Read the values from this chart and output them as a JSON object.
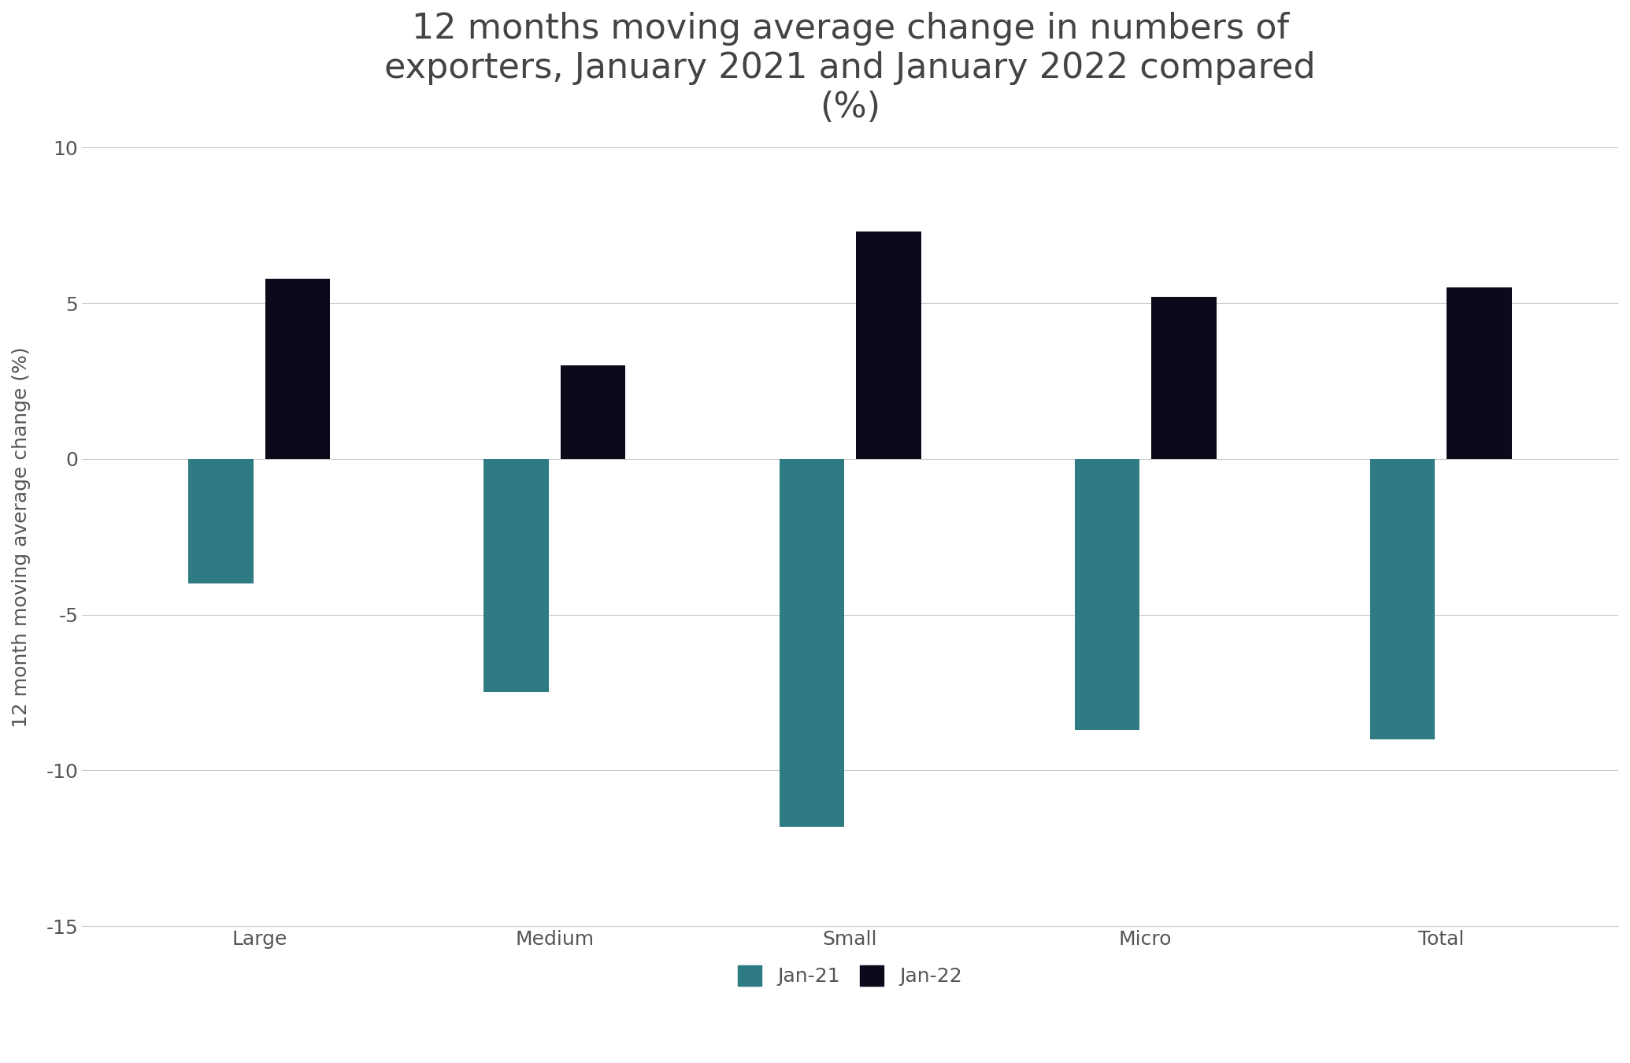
{
  "title": "12 months moving average change in numbers of\nexporters, January 2021 and January 2022 compared\n(%)",
  "ylabel": "12 month moving average change (%)",
  "categories": [
    "Large",
    "Medium",
    "Small",
    "Micro",
    "Total"
  ],
  "jan21_values": [
    -4.0,
    -7.5,
    -11.8,
    -8.7,
    -9.0
  ],
  "jan22_values": [
    5.8,
    3.0,
    7.3,
    5.2,
    5.5
  ],
  "color_jan21": "#2e7b84",
  "color_jan22": "#0a0a1a",
  "ylim": [
    -15,
    10
  ],
  "yticks": [
    -15,
    -10,
    -5,
    0,
    5,
    10
  ],
  "bar_width": 0.22,
  "bar_gap": 0.04,
  "legend_labels": [
    "Jan-21",
    "Jan-22"
  ],
  "background_color": "#ffffff",
  "grid_color": "#cccccc",
  "title_fontsize": 32,
  "label_fontsize": 18,
  "tick_fontsize": 18,
  "legend_fontsize": 18
}
